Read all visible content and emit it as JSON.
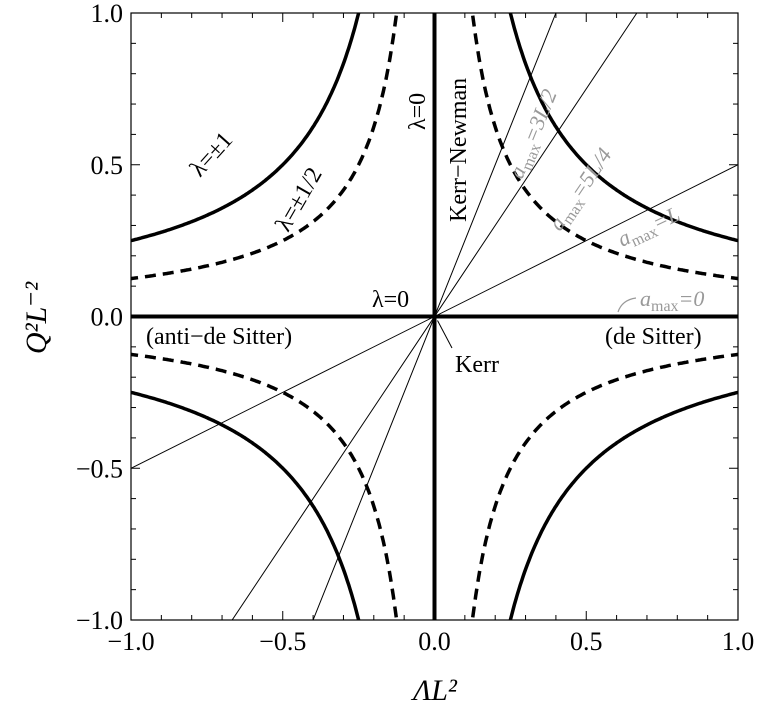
{
  "chart_data": {
    "type": "line",
    "title": "",
    "xlabel": "ΛL²",
    "ylabel": "Q²L⁻²",
    "xlim": [
      -1.0,
      1.0
    ],
    "ylim": [
      -1.0,
      1.0
    ],
    "x_ticks": [
      "−1.0",
      "−0.5",
      "0.0",
      "0.5",
      "1.0"
    ],
    "y_ticks": [
      "−1.0",
      "−0.5",
      "0.0",
      "0.5",
      "1.0"
    ],
    "grid": false,
    "series": [
      {
        "name": "λ=±1",
        "style": "thick-solid",
        "relation": "Λ·Q² = ±1/4",
        "points": [
          [
            -1.0,
            0.25
          ],
          [
            -0.5,
            0.5
          ],
          [
            0.5,
            0.5
          ],
          [
            1.0,
            0.25
          ],
          [
            -1.0,
            -0.25
          ],
          [
            -0.5,
            -0.5
          ],
          [
            0.5,
            -0.5
          ],
          [
            1.0,
            -0.25
          ]
        ]
      },
      {
        "name": "λ=±1/2",
        "style": "thick-dashed",
        "relation": "Λ·Q² = ±1/8",
        "points": [
          [
            -1.0,
            0.125
          ],
          [
            -0.5,
            0.25
          ],
          [
            -0.125,
            1.0
          ],
          [
            0.125,
            1.0
          ],
          [
            0.5,
            0.25
          ],
          [
            1.0,
            0.125
          ],
          [
            -1.0,
            -0.125
          ],
          [
            -0.125,
            -1.0
          ],
          [
            0.125,
            -1.0
          ],
          [
            1.0,
            -0.125
          ]
        ]
      },
      {
        "name": "λ=0",
        "style": "thick-solid",
        "relation": "ΛL² = 0 or Q²L⁻² = 0"
      },
      {
        "name": "a_max=3L/2",
        "style": "thin",
        "slope": 2.5
      },
      {
        "name": "a_max=5L/4",
        "style": "thin",
        "slope": 1.5
      },
      {
        "name": "a_max=L",
        "style": "thin",
        "slope": 0.5
      },
      {
        "name": "a_max=0",
        "style": "thin",
        "slope": 0
      }
    ]
  },
  "labels": {
    "lambda_pm1": "λ=±1",
    "lambda_pm_half": "λ=±1/2",
    "lambda_zero_vertical": "λ=0",
    "lambda_zero_horizontal": "λ=0",
    "kerr_newman": "Kerr−Newman",
    "kerr": "Kerr",
    "anti_de_sitter": "(anti−de Sitter)",
    "de_sitter": "(de Sitter)",
    "amax_3L2": {
      "a": "a",
      "sub": "max",
      "rest": "=3L/2"
    },
    "amax_5L4": {
      "a": "a",
      "sub": "max",
      "rest": "=5L/4"
    },
    "amax_L": {
      "a": "a",
      "sub": "max",
      "rest": "=L"
    },
    "amax_0": {
      "a": "a",
      "sub": "max",
      "rest": "=0"
    }
  },
  "colors": {
    "curves": "#000000",
    "gray_labels": "#999999"
  }
}
